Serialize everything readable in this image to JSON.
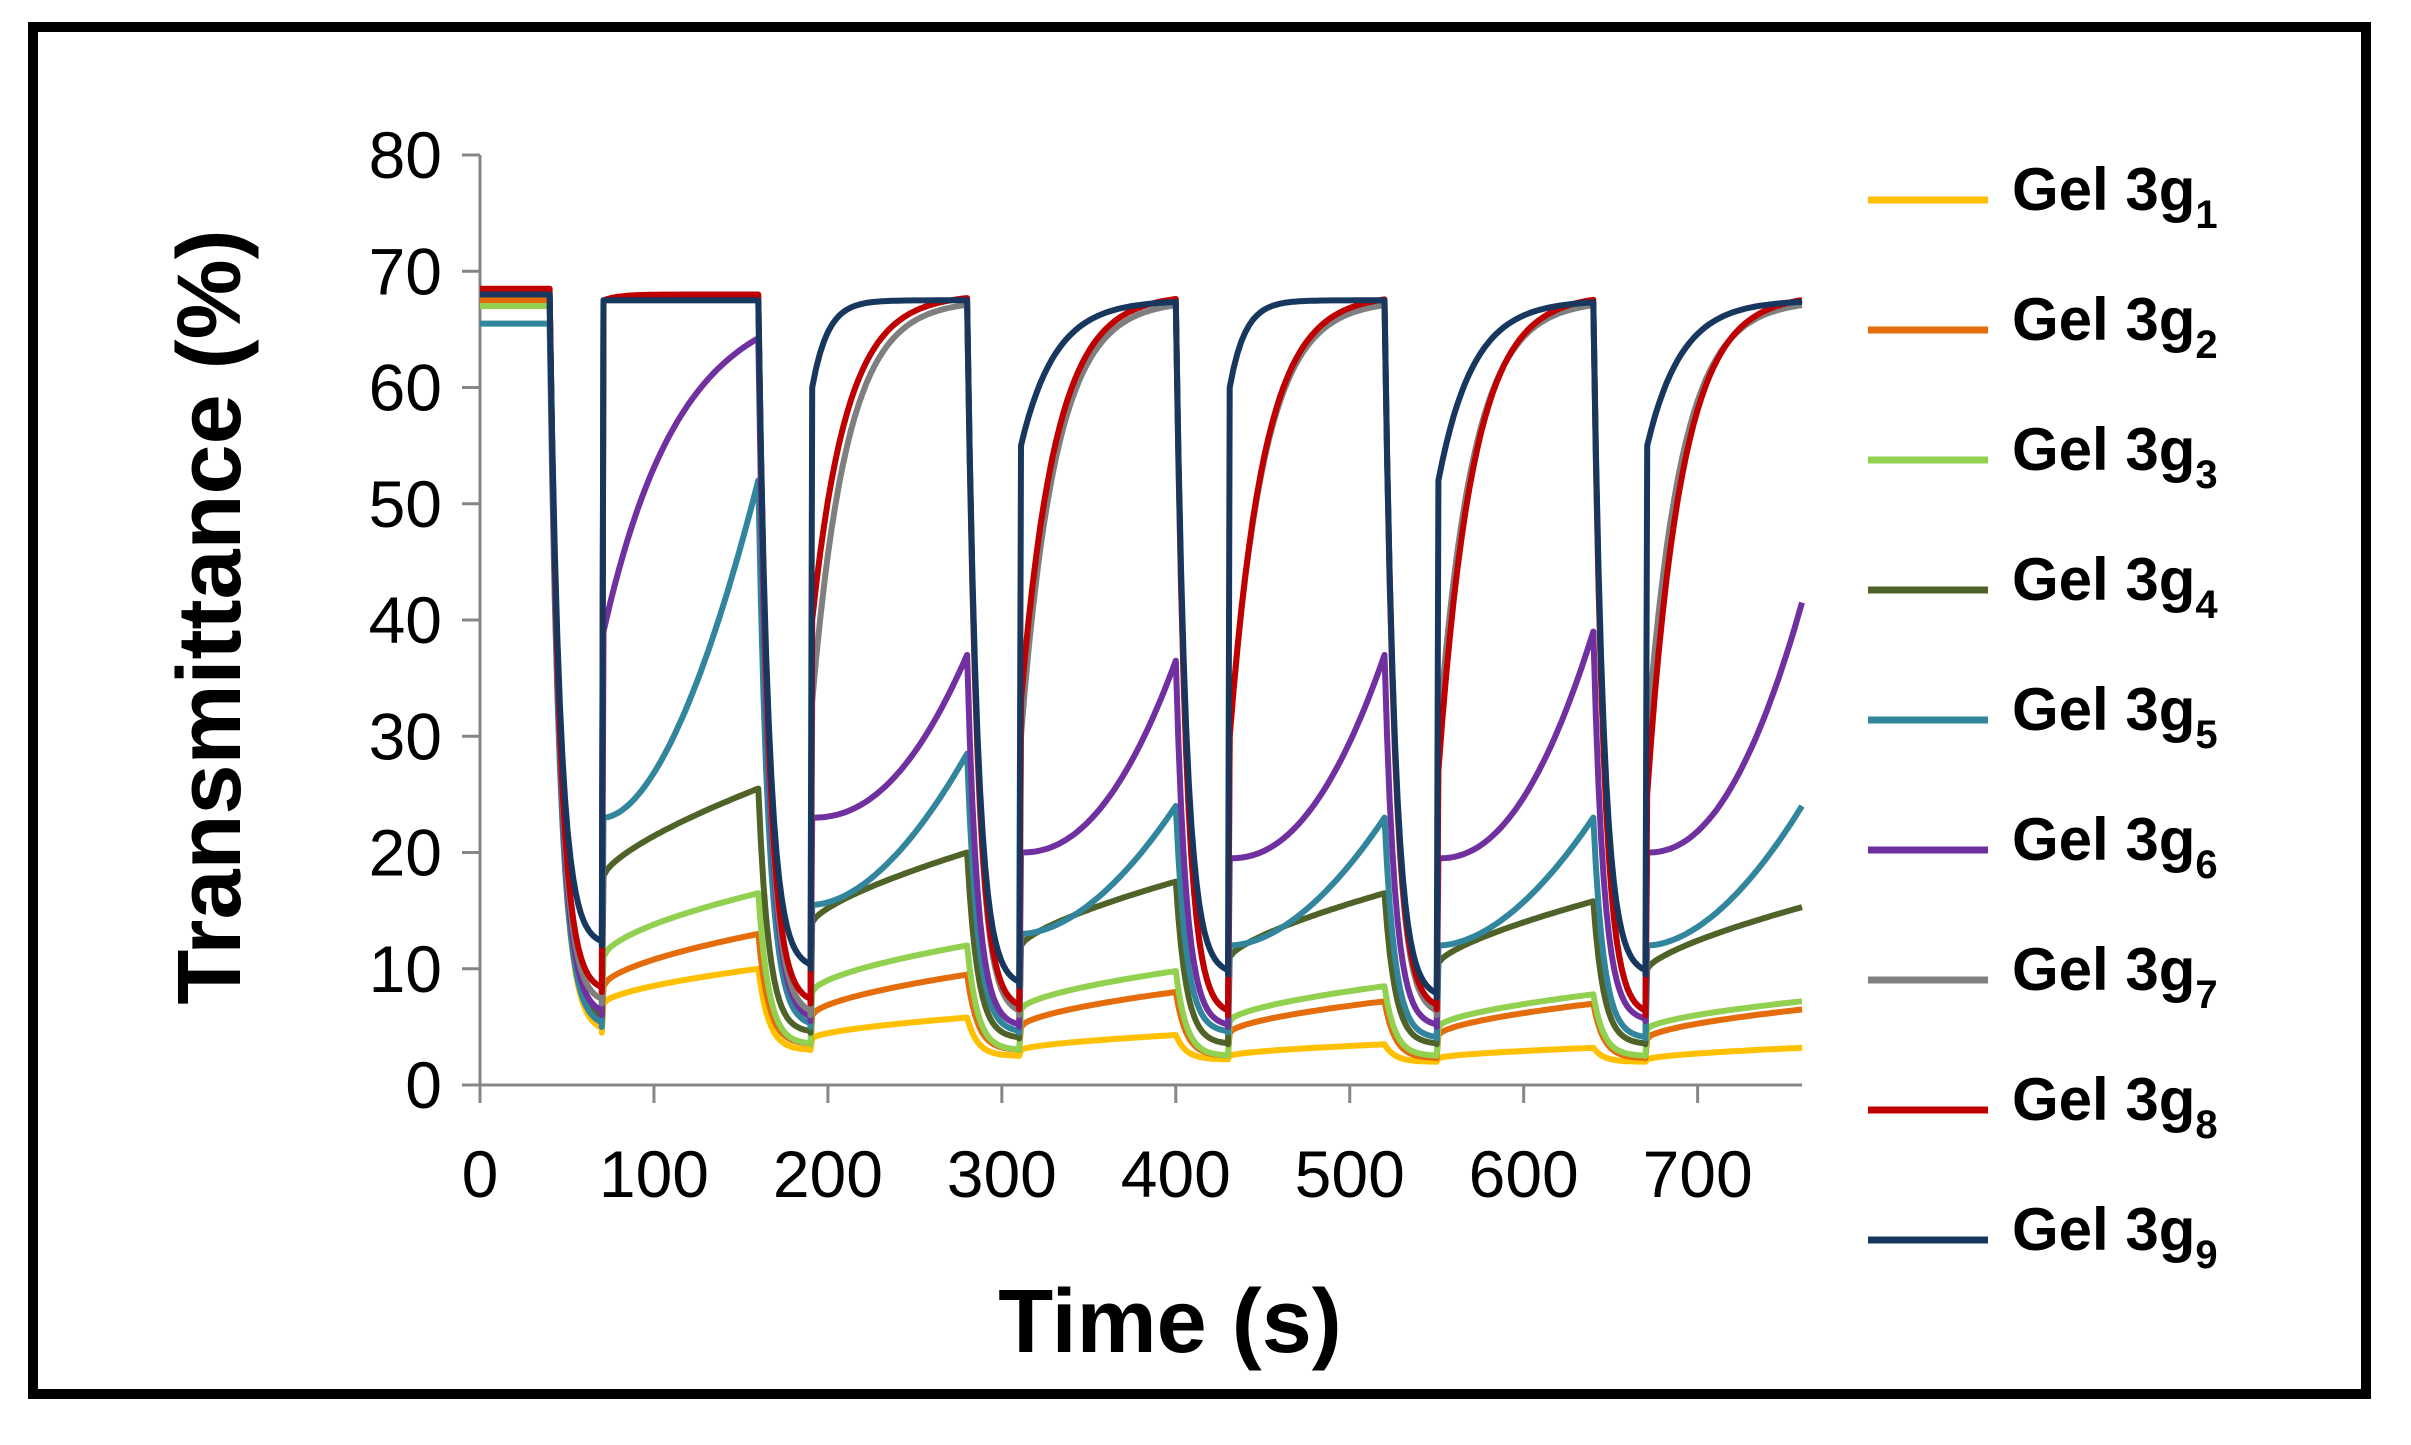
{
  "chart_data": {
    "type": "line",
    "title": "",
    "xlabel": "Time (s)",
    "ylabel": "Transmittance (%)",
    "xlim": [
      0,
      760
    ],
    "ylim": [
      0,
      80
    ],
    "xticks": [
      0,
      100,
      200,
      300,
      400,
      500,
      600,
      700
    ],
    "yticks": [
      0,
      10,
      20,
      30,
      40,
      50,
      60,
      70,
      80
    ],
    "legend_position": "right",
    "cycle_starts": [
      40,
      160,
      280,
      400,
      520,
      640
    ],
    "series": [
      {
        "name": "Gel 3g",
        "sub": "1",
        "color": "#FFC000",
        "initial": 67.5,
        "off_level": 67.5,
        "min_start": [
          4.5,
          3.0,
          2.5,
          2.2,
          2.0,
          2.0
        ],
        "bleach_start": [
          7.0,
          4.0,
          3.0,
          2.5,
          2.3,
          2.2
        ],
        "bleach_end": [
          10.0,
          5.8,
          4.3,
          3.5,
          3.2,
          3.2
        ],
        "curve": 0.6
      },
      {
        "name": "Gel 3g",
        "sub": "2",
        "color": "#E46C0A",
        "initial": 67.5,
        "off_level": 67.5,
        "min_start": [
          5.0,
          3.5,
          3.0,
          2.5,
          2.3,
          2.3
        ],
        "bleach_start": [
          8.5,
          6.0,
          5.0,
          4.5,
          4.3,
          4.0
        ],
        "bleach_end": [
          13.0,
          9.5,
          8.0,
          7.2,
          7.0,
          6.5
        ],
        "curve": 0.6
      },
      {
        "name": "Gel 3g",
        "sub": "3",
        "color": "#92D050",
        "initial": 67.0,
        "off_level": 67.5,
        "min_start": [
          5.0,
          3.5,
          3.0,
          2.5,
          2.5,
          2.5
        ],
        "bleach_start": [
          11.0,
          8.0,
          6.5,
          5.5,
          5.0,
          4.8
        ],
        "bleach_end": [
          16.5,
          12.0,
          9.8,
          8.5,
          7.8,
          7.2
        ],
        "curve": 0.6
      },
      {
        "name": "Gel 3g",
        "sub": "4",
        "color": "#4F6228",
        "initial": 68.0,
        "off_level": 67.5,
        "min_start": [
          5.5,
          4.5,
          4.0,
          3.5,
          3.5,
          3.5
        ],
        "bleach_start": [
          18.0,
          14.0,
          12.0,
          11.0,
          10.5,
          10.0
        ],
        "bleach_end": [
          25.5,
          20.0,
          17.5,
          16.5,
          15.8,
          15.3
        ],
        "curve": 0.7
      },
      {
        "name": "Gel 3g",
        "sub": "5",
        "color": "#31859C",
        "initial": 65.5,
        "off_level": 67.5,
        "min_start": [
          5.0,
          5.0,
          4.5,
          4.5,
          4.0,
          4.0
        ],
        "bleach_start": [
          23.0,
          15.5,
          13.0,
          12.0,
          12.0,
          12.0
        ],
        "bleach_end": [
          52.0,
          28.5,
          24.0,
          23.0,
          23.0,
          24.0
        ],
        "curve": 1.8
      },
      {
        "name": "Gel 3g",
        "sub": "6",
        "color": "#7030A0",
        "initial": 68.0,
        "off_level": 67.5,
        "min_start": [
          6.0,
          5.5,
          5.0,
          5.0,
          5.0,
          5.5
        ],
        "bleach_start": [
          39.0,
          23.0,
          20.0,
          19.5,
          19.5,
          20.0
        ],
        "bleach_end": [
          68.0,
          37.0,
          36.5,
          37.0,
          39.0,
          41.5
        ],
        "curve": 2.2
      },
      {
        "name": "Gel 3g",
        "sub": "7",
        "color": "#7F7F7F",
        "initial": 68.0,
        "off_level": 67.5,
        "min_start": [
          7.0,
          6.0,
          6.0,
          6.0,
          6.0,
          6.0
        ],
        "bleach_start": [
          67.5,
          33.0,
          30.0,
          30.0,
          30.0,
          30.0
        ],
        "bleach_end": [
          67.5,
          67.5,
          67.5,
          67.5,
          67.5,
          67.5
        ],
        "curve": 1.0
      },
      {
        "name": "Gel 3g",
        "sub": "8",
        "color": "#C00000",
        "initial": 68.5,
        "off_level": 68.0,
        "min_start": [
          8.0,
          7.0,
          6.5,
          6.0,
          6.5,
          6.0
        ],
        "bleach_start": [
          67.5,
          40.0,
          33.0,
          30.0,
          27.0,
          25.0
        ],
        "bleach_end": [
          68.0,
          68.0,
          68.0,
          68.0,
          68.0,
          68.0
        ],
        "curve": 1.0
      },
      {
        "name": "Gel 3g",
        "sub": "9",
        "color": "#17375E",
        "initial": 68.0,
        "off_level": 67.5,
        "min_start": [
          12.0,
          10.0,
          8.5,
          9.5,
          7.5,
          9.5
        ],
        "bleach_start": [
          67.5,
          60.0,
          55.0,
          60.0,
          52.0,
          55.0
        ],
        "bleach_end": [
          67.5,
          67.5,
          67.5,
          67.5,
          67.5,
          67.5
        ],
        "curve": 1.0
      }
    ]
  }
}
